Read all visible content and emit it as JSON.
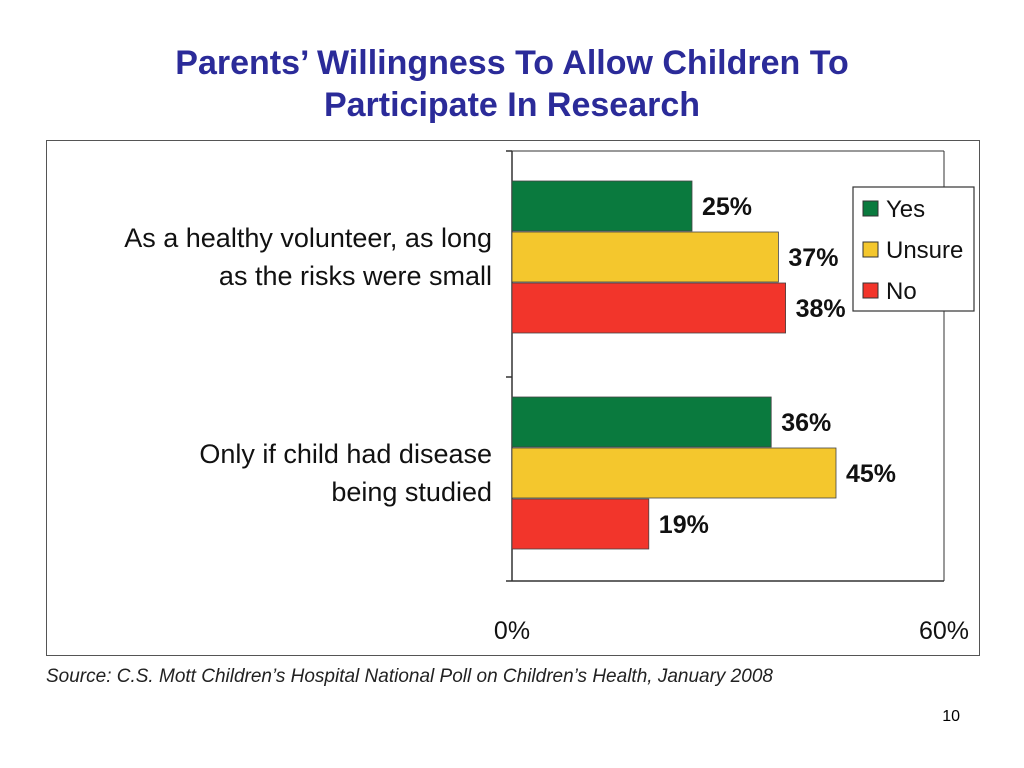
{
  "slide": {
    "title_line1": "Parents’ Willingness To Allow Children To",
    "title_line2": "Participate In Research",
    "source": "Source: C.S. Mott Children’s Hospital National Poll on Children’s Health, January 2008",
    "page_number": "10"
  },
  "chart_data": {
    "type": "bar",
    "orientation": "horizontal",
    "title": "",
    "xlabel": "",
    "ylabel": "",
    "xlim": [
      0,
      60
    ],
    "x_ticks": [
      "0%",
      "60%"
    ],
    "grid": false,
    "legend_position": "top-right",
    "categories": [
      [
        "As a healthy volunteer, as long",
        "as the risks were small"
      ],
      [
        "Only if child had disease",
        "being studied"
      ]
    ],
    "series": [
      {
        "name": "Yes",
        "color": "#0a7a3e",
        "values": [
          25,
          36
        ],
        "labels": [
          "25%",
          "36%"
        ]
      },
      {
        "name": "Unsure",
        "color": "#f4c72d",
        "values": [
          37,
          45
        ],
        "labels": [
          "37%",
          "45%"
        ]
      },
      {
        "name": "No",
        "color": "#f2352b",
        "values": [
          38,
          19
        ],
        "labels": [
          "38%",
          "19%"
        ]
      }
    ]
  }
}
